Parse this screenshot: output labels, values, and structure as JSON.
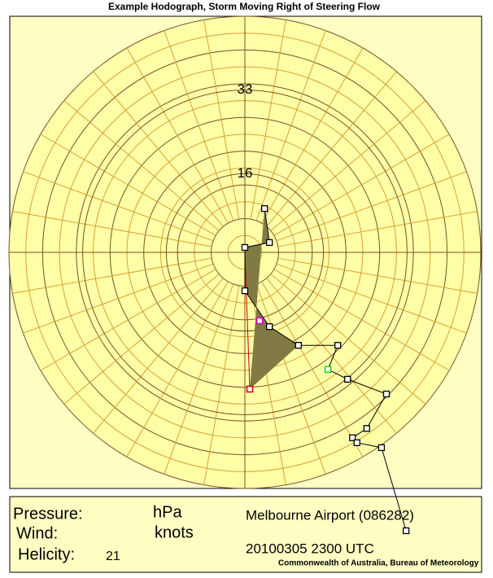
{
  "chart_data": {
    "type": "hodograph",
    "title": "Example Hodograph, Storm Moving Right of Steering Flow",
    "rlim": [
      0,
      48
    ],
    "rticks": [
      16,
      33
    ],
    "u": [
      4.0,
      5.0,
      0,
      0,
      5.0,
      10.9,
      18.9,
      16.9,
      20.9,
      28.8,
      24.8,
      21.9,
      22.8,
      27.8,
      32.8
    ],
    "v": [
      8.9,
      2.0,
      1.0,
      -7.8,
      -15.1,
      -18.9,
      -18.9,
      -23.8,
      -25.8,
      -28.8,
      -35.8,
      -37.7,
      -38.7,
      -39.7,
      -56.6
    ],
    "color": "#000000",
    "highlight_index": 7,
    "highlight_color": "#00d000",
    "storm_motion": {
      "u": 1.0,
      "v": -27.8,
      "color": "#d00000"
    },
    "mean_wind": {
      "u": 3.0,
      "v": -13.9,
      "color": "#d000d0"
    },
    "fill_color": "#827a44"
  },
  "info": {
    "pressure_label": "Pressure:",
    "pressure_unit": "hPa",
    "wind_label": "Wind:",
    "wind_unit": "knots",
    "helicity_label": "Helicity:",
    "helicity": 21,
    "station": "Melbourne Airport (086282)",
    "time": "20100305 2300 UTC",
    "credit": "Commonwealth of Australia, Bureau of Meteorology"
  }
}
